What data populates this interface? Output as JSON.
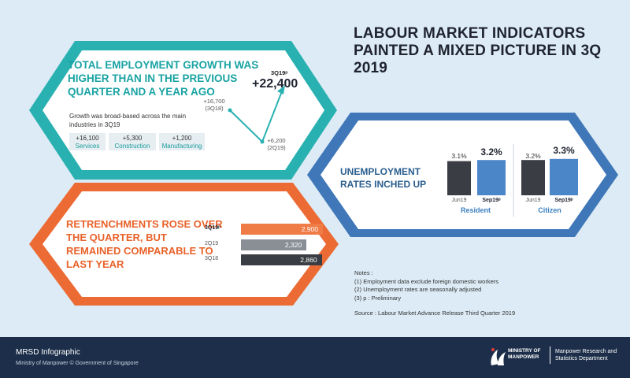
{
  "title": "LABOUR MARKET INDICATORS PAINTED A MIXED PICTURE IN 3Q 2019",
  "employment": {
    "heading": "TOTAL EMPLOYMENT GROWTH WAS HIGHER THAN IN THE PREVIOUS QUARTER AND A YEAR AGO",
    "description": "Growth was broad-based across the main industries in 3Q19",
    "headline_label": "3Q19ᵖ",
    "headline_value": "+22,400",
    "points": [
      {
        "label": "+16,700",
        "quarter": "(3Q18)"
      },
      {
        "label": "+6,200",
        "quarter": "(2Q19)"
      }
    ],
    "industries": [
      {
        "value": "+16,100",
        "name": "Services"
      },
      {
        "value": "+5,300",
        "name": "Construction"
      },
      {
        "value": "+1,200",
        "name": "Manufacturing"
      }
    ]
  },
  "unemployment": {
    "heading": "UNEMPLOYMENT RATES INCHED UP",
    "groups": [
      {
        "name": "Resident",
        "bars": [
          {
            "period": "Jun19",
            "rate": "3.1%",
            "value": 3.1
          },
          {
            "period": "Sep19ᵖ",
            "rate": "3.2%",
            "value": 3.2
          }
        ]
      },
      {
        "name": "Citizen",
        "bars": [
          {
            "period": "Jun19",
            "rate": "3.2%",
            "value": 3.2
          },
          {
            "period": "Sep19ᵖ",
            "rate": "3.3%",
            "value": 3.3
          }
        ]
      }
    ]
  },
  "retrenchment": {
    "heading": "RETRENCHMENTS ROSE OVER THE QUARTER, BUT REMAINED COMPARABLE TO LAST YEAR",
    "rows": [
      {
        "quarter": "3Q19ᵖ",
        "label": "2,900",
        "value": 2900,
        "color": "#ef7b45"
      },
      {
        "quarter": "2Q19",
        "label": "2,320",
        "value": 2320,
        "color": "#8a8f96"
      },
      {
        "quarter": "3Q18",
        "label": "2,860",
        "value": 2860,
        "color": "#3a3d43"
      }
    ]
  },
  "notes": {
    "heading": "Notes :",
    "items": [
      "(1) Employment data exclude foreign domestic workers",
      "(2) Unemployment rates are seasonally adjusted",
      "(3) p : Preliminary"
    ],
    "source": "Source : Labour Market Advance Release Third Quarter 2019"
  },
  "footer": {
    "title": "MRSD Infographic",
    "subtitle": "Ministry of Manpower © Government of Singapore",
    "ministry": "MINISTRY OF MANPOWER",
    "department": "Manpower Research and Statistics Department"
  },
  "colors": {
    "teal": "#29b1b1",
    "blue": "#3f77b8",
    "orange": "#ec6b35",
    "navy": "#1c2e49"
  }
}
